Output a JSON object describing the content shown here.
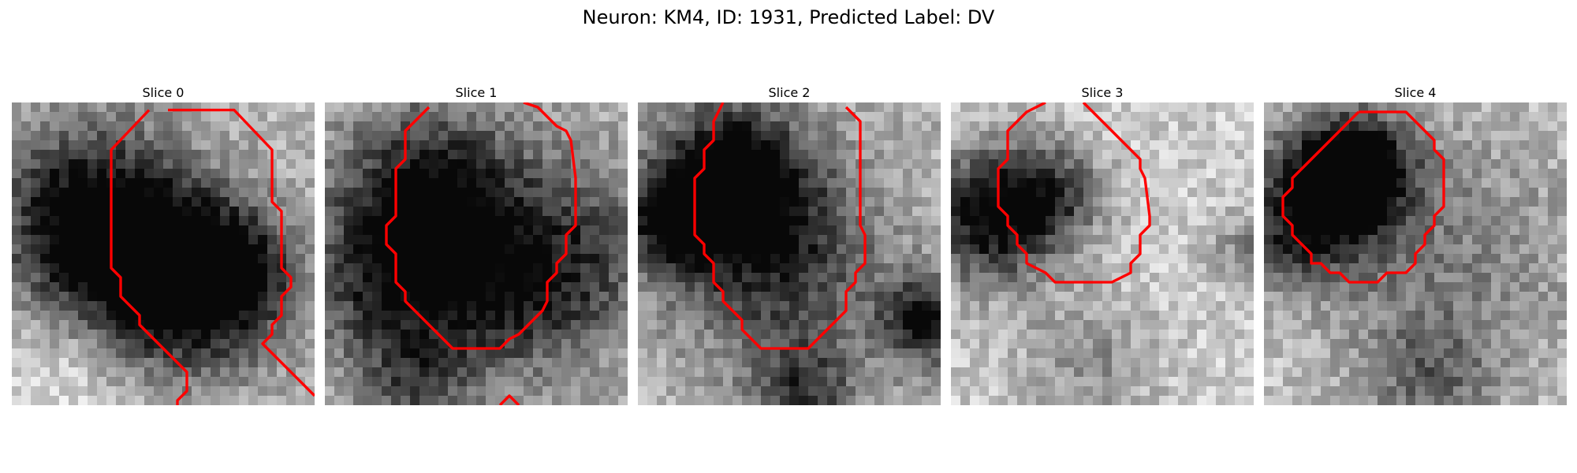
{
  "title": "Neuron: KM4, ID: 1931, Predicted Label: DV",
  "colors": {
    "contour": "#ff0000"
  },
  "slices": [
    {
      "title": "Slice 0"
    },
    {
      "title": "Slice 1"
    },
    {
      "title": "Slice 2"
    },
    {
      "title": "Slice 3"
    },
    {
      "title": "Slice 4"
    }
  ]
}
